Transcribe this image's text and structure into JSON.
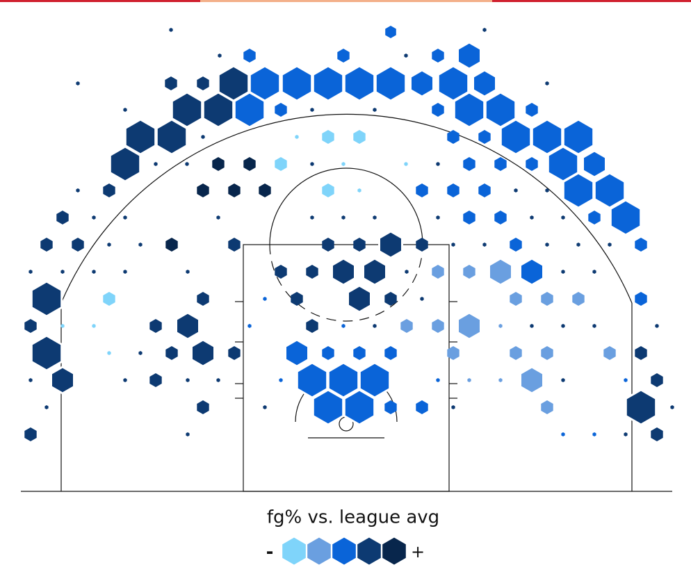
{
  "chart_data": {
    "type": "hexbin",
    "xlim": [
      0,
      994
    ],
    "ylim": [
      0,
      707
    ],
    "colors": [
      "#7fd4fa",
      "#6a9fe0",
      "#0a64d8",
      "#0d3a72",
      "#08264c"
    ],
    "legend_title": "fg% vs. league avg",
    "legend_low": "-",
    "legend_high": "+",
    "points": [
      [
        246,
        664,
        3,
        4
      ],
      [
        562,
        661,
        9,
        3
      ],
      [
        697,
        664,
        3,
        4
      ],
      [
        316,
        627,
        3,
        4
      ],
      [
        359,
        627,
        10,
        3
      ],
      [
        494,
        627,
        10,
        3
      ],
      [
        584,
        627,
        3,
        4
      ],
      [
        630,
        627,
        10,
        3
      ],
      [
        675,
        627,
        19,
        3
      ],
      [
        112,
        587,
        3,
        4
      ],
      [
        246,
        587,
        10,
        4
      ],
      [
        292,
        587,
        10,
        4
      ],
      [
        336,
        587,
        25,
        4
      ],
      [
        381,
        587,
        25,
        3
      ],
      [
        427,
        587,
        25,
        3
      ],
      [
        472,
        587,
        25,
        3
      ],
      [
        517,
        587,
        25,
        3
      ],
      [
        562,
        587,
        25,
        3
      ],
      [
        607,
        587,
        19,
        3
      ],
      [
        652,
        587,
        25,
        3
      ],
      [
        697,
        587,
        19,
        3
      ],
      [
        787,
        587,
        3,
        4
      ],
      [
        180,
        549,
        3,
        4
      ],
      [
        269,
        549,
        25,
        4
      ],
      [
        314,
        549,
        25,
        4
      ],
      [
        359,
        549,
        25,
        3
      ],
      [
        404,
        549,
        10,
        3
      ],
      [
        449,
        549,
        3,
        4
      ],
      [
        539,
        549,
        3,
        4
      ],
      [
        630,
        549,
        10,
        3
      ],
      [
        675,
        549,
        25,
        3
      ],
      [
        720,
        549,
        25,
        3
      ],
      [
        765,
        549,
        10,
        3
      ],
      [
        202,
        510,
        25,
        4
      ],
      [
        247,
        510,
        25,
        4
      ],
      [
        292,
        510,
        3,
        4
      ],
      [
        427,
        510,
        3,
        1
      ],
      [
        472,
        510,
        10,
        1
      ],
      [
        517,
        510,
        10,
        1
      ],
      [
        652,
        510,
        10,
        3
      ],
      [
        697,
        510,
        10,
        3
      ],
      [
        742,
        510,
        25,
        3
      ],
      [
        787,
        510,
        25,
        3
      ],
      [
        832,
        510,
        25,
        3
      ],
      [
        180,
        471,
        25,
        4
      ],
      [
        224,
        471,
        3,
        4
      ],
      [
        269,
        471,
        3,
        4
      ],
      [
        314,
        471,
        10,
        5
      ],
      [
        359,
        471,
        10,
        5
      ],
      [
        404,
        471,
        10,
        1
      ],
      [
        449,
        471,
        3,
        4
      ],
      [
        494,
        471,
        3,
        1
      ],
      [
        584,
        471,
        3,
        1
      ],
      [
        630,
        471,
        3,
        4
      ],
      [
        675,
        471,
        10,
        3
      ],
      [
        720,
        471,
        10,
        3
      ],
      [
        765,
        471,
        10,
        3
      ],
      [
        810,
        471,
        25,
        3
      ],
      [
        855,
        471,
        19,
        3
      ],
      [
        112,
        433,
        3,
        4
      ],
      [
        157,
        433,
        10,
        4
      ],
      [
        292,
        433,
        10,
        5
      ],
      [
        337,
        433,
        10,
        5
      ],
      [
        381,
        433,
        10,
        5
      ],
      [
        472,
        433,
        10,
        1
      ],
      [
        517,
        433,
        3,
        1
      ],
      [
        607,
        433,
        10,
        3
      ],
      [
        652,
        433,
        10,
        3
      ],
      [
        697,
        433,
        10,
        3
      ],
      [
        742,
        433,
        3,
        4
      ],
      [
        787,
        433,
        3,
        4
      ],
      [
        832,
        433,
        25,
        3
      ],
      [
        877,
        433,
        25,
        3
      ],
      [
        90,
        394,
        10,
        4
      ],
      [
        135,
        394,
        3,
        4
      ],
      [
        180,
        394,
        3,
        4
      ],
      [
        314,
        394,
        3,
        4
      ],
      [
        449,
        394,
        3,
        4
      ],
      [
        494,
        394,
        3,
        4
      ],
      [
        539,
        394,
        3,
        4
      ],
      [
        630,
        394,
        3,
        4
      ],
      [
        675,
        394,
        10,
        3
      ],
      [
        720,
        394,
        10,
        3
      ],
      [
        765,
        394,
        3,
        4
      ],
      [
        810,
        394,
        3,
        4
      ],
      [
        855,
        394,
        10,
        3
      ],
      [
        900,
        394,
        25,
        3
      ],
      [
        67,
        355,
        10,
        4
      ],
      [
        112,
        355,
        10,
        4
      ],
      [
        157,
        355,
        3,
        4
      ],
      [
        202,
        355,
        3,
        4
      ],
      [
        247,
        355,
        10,
        5
      ],
      [
        337,
        355,
        10,
        4
      ],
      [
        472,
        355,
        10,
        4
      ],
      [
        517,
        355,
        10,
        4
      ],
      [
        562,
        355,
        19,
        4
      ],
      [
        607,
        355,
        10,
        4
      ],
      [
        652,
        355,
        3,
        4
      ],
      [
        697,
        355,
        3,
        4
      ],
      [
        742,
        355,
        10,
        3
      ],
      [
        787,
        355,
        3,
        4
      ],
      [
        832,
        355,
        3,
        4
      ],
      [
        877,
        355,
        3,
        4
      ],
      [
        922,
        355,
        10,
        3
      ],
      [
        44,
        316,
        3,
        4
      ],
      [
        90,
        316,
        3,
        4
      ],
      [
        135,
        316,
        3,
        4
      ],
      [
        180,
        316,
        3,
        4
      ],
      [
        270,
        316,
        3,
        4
      ],
      [
        404,
        316,
        10,
        4
      ],
      [
        449,
        316,
        10,
        4
      ],
      [
        494,
        316,
        19,
        4
      ],
      [
        539,
        316,
        19,
        4
      ],
      [
        585,
        316,
        3,
        4
      ],
      [
        630,
        316,
        10,
        2
      ],
      [
        675,
        316,
        10,
        2
      ],
      [
        720,
        316,
        19,
        2
      ],
      [
        765,
        316,
        19,
        3
      ],
      [
        810,
        316,
        3,
        4
      ],
      [
        855,
        316,
        3,
        4
      ],
      [
        67,
        277,
        25,
        4
      ],
      [
        157,
        277,
        10,
        1
      ],
      [
        292,
        277,
        10,
        4
      ],
      [
        381,
        277,
        3,
        3
      ],
      [
        427,
        277,
        10,
        4
      ],
      [
        517,
        277,
        19,
        4
      ],
      [
        562,
        277,
        10,
        4
      ],
      [
        607,
        277,
        3,
        4
      ],
      [
        742,
        277,
        10,
        2
      ],
      [
        787,
        277,
        10,
        2
      ],
      [
        832,
        277,
        10,
        2
      ],
      [
        922,
        277,
        10,
        3
      ],
      [
        44,
        238,
        10,
        4
      ],
      [
        90,
        238,
        3,
        1
      ],
      [
        135,
        238,
        3,
        1
      ],
      [
        224,
        238,
        10,
        4
      ],
      [
        270,
        238,
        19,
        4
      ],
      [
        359,
        238,
        3,
        3
      ],
      [
        449,
        238,
        10,
        4
      ],
      [
        494,
        238,
        3,
        3
      ],
      [
        539,
        238,
        3,
        4
      ],
      [
        585,
        238,
        10,
        2
      ],
      [
        630,
        238,
        10,
        2
      ],
      [
        675,
        238,
        19,
        2
      ],
      [
        720,
        238,
        3,
        2
      ],
      [
        765,
        238,
        3,
        4
      ],
      [
        810,
        238,
        3,
        4
      ],
      [
        855,
        238,
        3,
        4
      ],
      [
        945,
        238,
        3,
        4
      ],
      [
        67,
        199,
        25,
        4
      ],
      [
        157,
        199,
        3,
        1
      ],
      [
        202,
        199,
        3,
        4
      ],
      [
        247,
        199,
        10,
        4
      ],
      [
        292,
        199,
        19,
        4
      ],
      [
        337,
        199,
        10,
        4
      ],
      [
        427,
        199,
        19,
        3
      ],
      [
        472,
        199,
        10,
        3
      ],
      [
        517,
        199,
        10,
        3
      ],
      [
        562,
        199,
        10,
        3
      ],
      [
        652,
        199,
        10,
        2
      ],
      [
        742,
        199,
        10,
        2
      ],
      [
        787,
        199,
        10,
        2
      ],
      [
        877,
        199,
        10,
        2
      ],
      [
        922,
        199,
        10,
        4
      ],
      [
        44,
        160,
        3,
        4
      ],
      [
        90,
        160,
        19,
        4
      ],
      [
        180,
        160,
        3,
        4
      ],
      [
        224,
        160,
        10,
        4
      ],
      [
        270,
        160,
        3,
        4
      ],
      [
        314,
        160,
        3,
        4
      ],
      [
        404,
        160,
        3,
        3
      ],
      [
        449,
        160,
        25,
        3
      ],
      [
        494,
        160,
        25,
        3
      ],
      [
        539,
        160,
        25,
        3
      ],
      [
        630,
        160,
        3,
        3
      ],
      [
        675,
        160,
        3,
        2
      ],
      [
        720,
        160,
        3,
        2
      ],
      [
        765,
        160,
        19,
        2
      ],
      [
        810,
        160,
        3,
        4
      ],
      [
        900,
        160,
        3,
        3
      ],
      [
        945,
        160,
        10,
        4
      ],
      [
        67,
        121,
        3,
        4
      ],
      [
        292,
        121,
        10,
        4
      ],
      [
        381,
        121,
        3,
        4
      ],
      [
        472,
        121,
        25,
        3
      ],
      [
        517,
        121,
        25,
        3
      ],
      [
        562,
        121,
        10,
        3
      ],
      [
        607,
        121,
        10,
        3
      ],
      [
        652,
        121,
        3,
        4
      ],
      [
        787,
        121,
        10,
        2
      ],
      [
        922,
        121,
        25,
        4
      ],
      [
        967,
        121,
        3,
        4
      ],
      [
        44,
        82,
        10,
        4
      ],
      [
        270,
        82,
        3,
        4
      ],
      [
        810,
        82,
        3,
        3
      ],
      [
        855,
        82,
        3,
        3
      ],
      [
        900,
        82,
        3,
        4
      ],
      [
        945,
        82,
        10,
        4
      ]
    ]
  }
}
